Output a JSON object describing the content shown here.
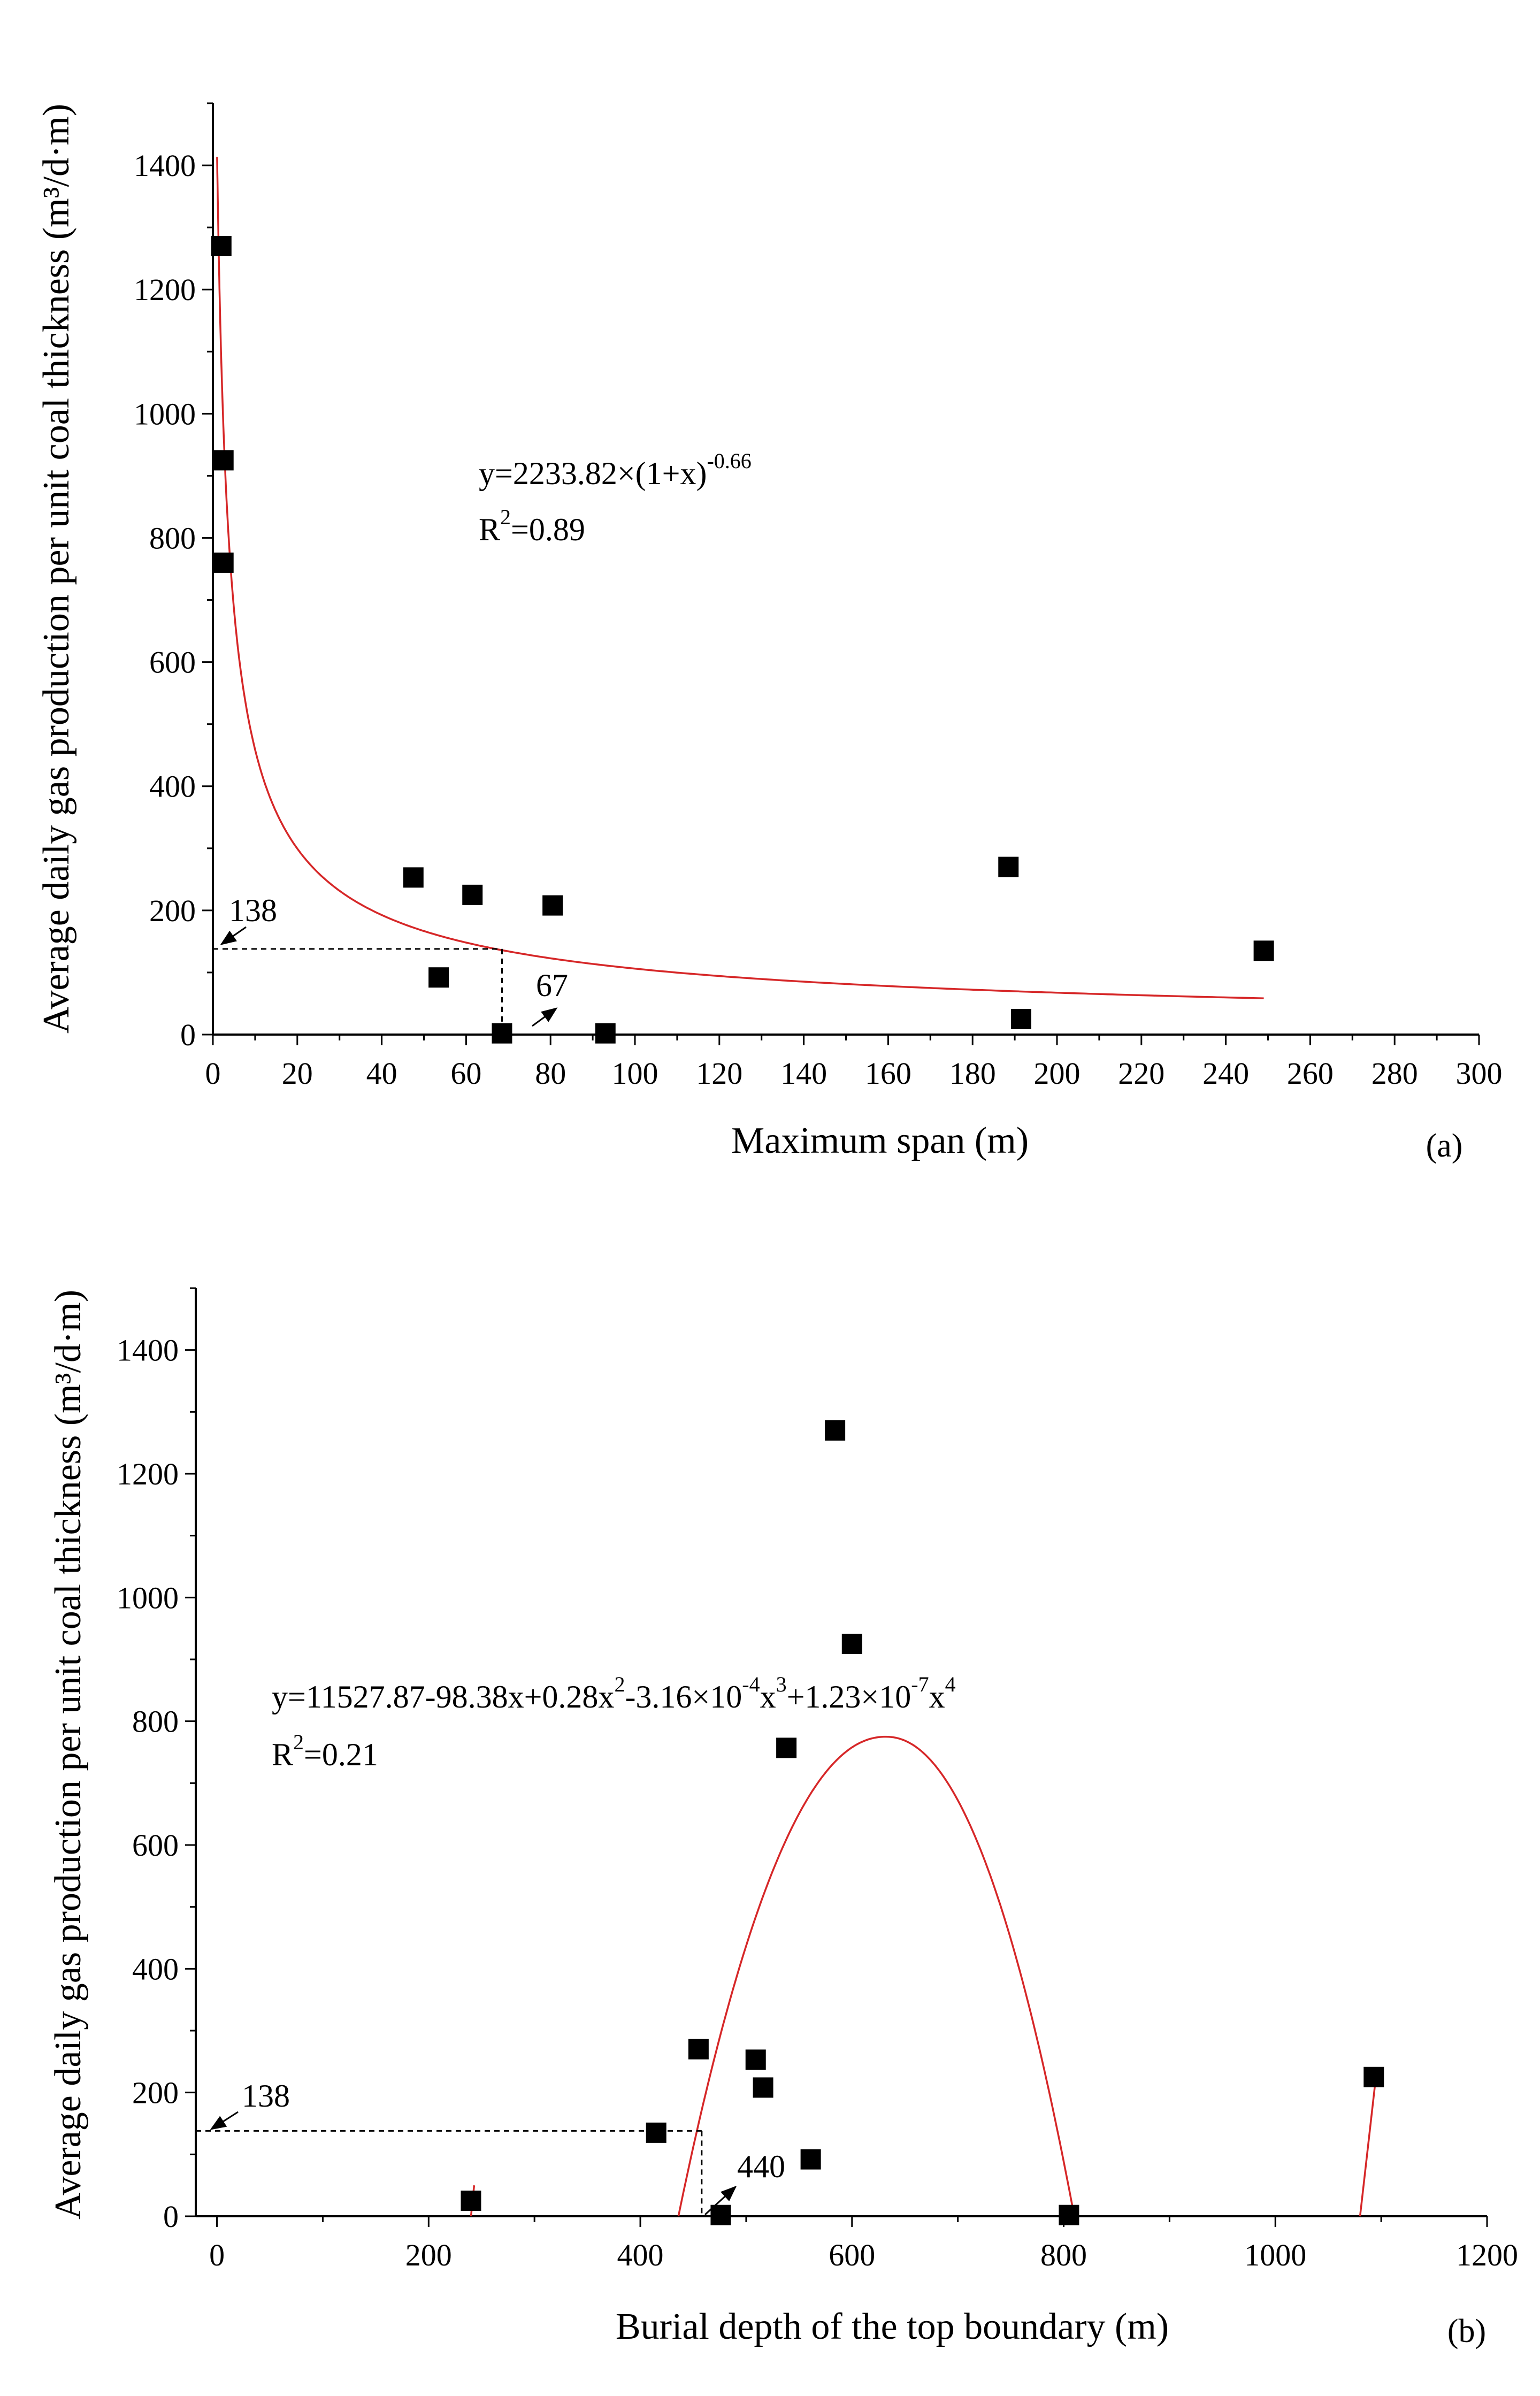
{
  "chart_data": [
    {
      "type": "scatter",
      "panel_label": "(a)",
      "xlabel": "Maximum span (m)",
      "ylabel": "Average daily gas production per unit coal thickness (m³/d·m)",
      "xlim": [
        0,
        300
      ],
      "ylim": [
        0,
        1500
      ],
      "xticks": [
        "0",
        "20",
        "40",
        "60",
        "80",
        "100",
        "120",
        "140",
        "160",
        "180",
        "200",
        "220",
        "240",
        "260",
        "280",
        "300"
      ],
      "yticks": [
        "0",
        "200",
        "400",
        "600",
        "800",
        "1000",
        "1200",
        "1400"
      ],
      "points": [
        {
          "x": 2,
          "y": 1270
        },
        {
          "x": 2.5,
          "y": 925
        },
        {
          "x": 2.5,
          "y": 760
        },
        {
          "x": 47.5,
          "y": 253
        },
        {
          "x": 53.5,
          "y": 92
        },
        {
          "x": 61.5,
          "y": 225
        },
        {
          "x": 68.5,
          "y": 2
        },
        {
          "x": 80.5,
          "y": 208
        },
        {
          "x": 93,
          "y": 2
        },
        {
          "x": 188.5,
          "y": 270
        },
        {
          "x": 191.5,
          "y": 25
        },
        {
          "x": 249,
          "y": 135
        }
      ],
      "fit": {
        "equation": "y=2233.82×(1+x)^-0.66",
        "eq_base": "y=2233.82×(1+x)",
        "eq_exponent": "-0.66",
        "r2_label": "R",
        "r2_sup": "2",
        "r2_value": "=0.89",
        "a": 2233.82,
        "b": -0.66,
        "x_range": [
          1,
          249
        ]
      },
      "annotations": [
        {
          "text": "138",
          "value": 138
        },
        {
          "text": "67",
          "value": 67
        }
      ],
      "threshold": {
        "x": 68.5,
        "y": 138
      }
    },
    {
      "type": "scatter",
      "panel_label": "(b)",
      "xlabel": "Burial depth of the top boundary (m)",
      "ylabel": "Average daily gas production per unit coal thickness (m³/d·m)",
      "xlim": [
        -20,
        1200
      ],
      "ylim": [
        0,
        1500
      ],
      "xticks": [
        "0",
        "200",
        "400",
        "600",
        "800",
        "1000",
        "1200"
      ],
      "xtick_values": [
        0,
        200,
        400,
        600,
        800,
        1000,
        1200
      ],
      "yticks": [
        "0",
        "200",
        "400",
        "600",
        "800",
        "1000",
        "1200",
        "1400"
      ],
      "points": [
        {
          "x": 240,
          "y": 25
        },
        {
          "x": 415,
          "y": 135
        },
        {
          "x": 455,
          "y": 270
        },
        {
          "x": 476,
          "y": 2
        },
        {
          "x": 509,
          "y": 253
        },
        {
          "x": 516,
          "y": 208
        },
        {
          "x": 538,
          "y": 757
        },
        {
          "x": 561,
          "y": 92
        },
        {
          "x": 584,
          "y": 1270
        },
        {
          "x": 600,
          "y": 925
        },
        {
          "x": 805,
          "y": 2
        },
        {
          "x": 1093,
          "y": 225
        }
      ],
      "fit": {
        "equation": "y=11527.87-98.38x+0.28x²-3.16×10⁻⁴x³+1.23×10⁻⁷x⁴",
        "eq_parts": [
          "y=11527.87-98.38x+0.28x",
          "2",
          "-3.16×10",
          "-4",
          "x",
          "3",
          "+1.23×10",
          "-7",
          "x",
          "4"
        ],
        "r2_label": "R",
        "r2_sup": "2",
        "r2_value": "=0.21",
        "peak": {
          "x": 632,
          "y": 775
        },
        "segments": [
          {
            "x_range": [
              436,
              810
            ]
          },
          {
            "x_range": [
              240,
              243
            ]
          },
          {
            "x_range": [
              1080,
              1095
            ]
          }
        ]
      },
      "annotations": [
        {
          "text": "138",
          "value": 138
        },
        {
          "text": "440",
          "value": 440
        }
      ],
      "threshold": {
        "x": 458,
        "y": 138
      }
    }
  ],
  "colors": {
    "points": "#000000",
    "fit": "#d62728",
    "axis": "#000000",
    "dash": "#000000"
  }
}
